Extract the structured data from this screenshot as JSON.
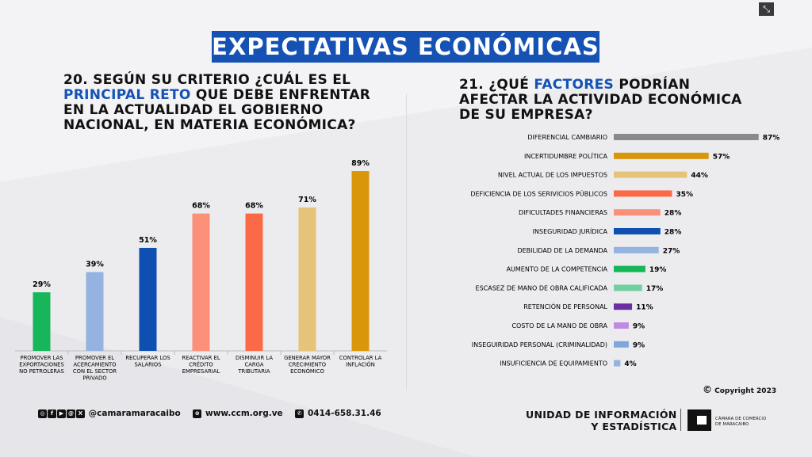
{
  "banner_title": "EXPECTATIVAS ECONÓMICAS",
  "exit_icon": "collapse-icon",
  "q20": {
    "number": "20.",
    "pre": "SEGÚN SU CRITERIO ¿CUÁL ES EL",
    "highlight": "PRINCIPAL RETO",
    "post": "QUE DEBE ENFRENTAR EN LA ACTUALIDAD EL GOBIERNO NACIONAL, EN MATERIA ECONÓMICA?"
  },
  "q21": {
    "number": "21.",
    "pre": "¿QUÉ",
    "highlight": "FACTORES",
    "post": "PODRÍAN AFECTAR LA ACTIVIDAD ECONÓMICA DE SU EMPRESA?"
  },
  "chart_data": [
    {
      "type": "bar",
      "orientation": "vertical",
      "title": "20. SEGÚN SU CRITERIO ¿CUÁL ES EL PRINCIPAL RETO QUE DEBE ENFRENTAR EN LA ACTUALIDAD EL GOBIERNO NACIONAL, EN MATERIA ECONÓMICA?",
      "categories": [
        [
          "PROMOVER LAS",
          "EXPORTACIONES",
          "NO PETROLERAS"
        ],
        [
          "PROMOVER EL",
          "ACERCAMIENTO",
          "CON EL SECTOR",
          "PRIVADO"
        ],
        [
          "RECUPERAR LOS",
          "SALARIOS"
        ],
        [
          "REACTIVAR EL",
          "CRÉDITO",
          "EMPRESARIAL"
        ],
        [
          "DISMINUIR LA",
          "CARGA",
          "TRIBUTARIA"
        ],
        [
          "GENERAR MAYOR",
          "CRECIMIENTO",
          "ECONÓMICO"
        ],
        [
          "CONTROLAR LA",
          "INFLACIÓN"
        ]
      ],
      "values": [
        29,
        39,
        51,
        68,
        68,
        71,
        89
      ],
      "labels": [
        "29%",
        "39%",
        "51%",
        "68%",
        "68%",
        "71%",
        "89%"
      ],
      "colors": [
        "#17b65a",
        "#94b3e0",
        "#0f4fb1",
        "#fc917a",
        "#fb6a47",
        "#e5c47a",
        "#d9960a"
      ],
      "ylim": [
        0,
        100
      ]
    },
    {
      "type": "bar",
      "orientation": "horizontal",
      "title": "21. ¿QUÉ FACTORES PODRÍAN AFECTAR LA ACTIVIDAD ECONÓMICA DE SU EMPRESA?",
      "categories": [
        "DIFERENCIAL CAMBIARIO",
        "INCERTIDUMBRE POLÍTICA",
        "NIVEL ACTUAL DE LOS IMPUESTOS",
        "DEFICIENCIA DE LOS SERIVICIOS PÚBLICOS",
        "DIFICULTADES FINANCIERAS",
        "INSEGURIDAD JURÍDICA",
        "DEBILIDAD DE LA DEMANDA",
        "AUMENTO DE LA COMPETENCIA",
        "ESCASEZ DE MANO DE OBRA CALIFICADA",
        "RETENCIÓN DE PERSONAL",
        "COSTO DE LA MANO DE OBRA",
        "INSEGUIRIDAD PERSONAL (CRIMINALIDAD)",
        "INSUFICIENCIA DE EQUIPAMIENTO"
      ],
      "values": [
        87,
        57,
        44,
        35,
        28,
        28,
        27,
        19,
        17,
        11,
        9,
        9,
        4
      ],
      "labels": [
        "87%",
        "57%",
        "44%",
        "35%",
        "28%",
        "28%",
        "27%",
        "19%",
        "17%",
        "11%",
        "9%",
        "9%",
        "4%"
      ],
      "colors": [
        "#8a8a8a",
        "#d9960a",
        "#e5c47a",
        "#fb6a47",
        "#fc917a",
        "#0f4fb1",
        "#94b3e0",
        "#17b65a",
        "#72d0a0",
        "#6a2fa0",
        "#c08ae0",
        "#7fa6dd",
        "#94b3e0"
      ],
      "xlim": [
        0,
        100
      ]
    }
  ],
  "footer": {
    "social_icons": [
      "instagram-icon",
      "facebook-icon",
      "youtube-icon",
      "threads-icon",
      "x-icon"
    ],
    "social_glyphs": [
      "◎",
      "f",
      "▶",
      "@",
      "X"
    ],
    "social_handle": "@camaramaracaibo",
    "web_icon_glyph": "⊕",
    "website": "www.ccm.org.ve",
    "phone_icon_glyph": "✆",
    "phone": "0414-658.31.46",
    "copyright_mark": "©",
    "copyright": "Copyright 2023",
    "unit_line1": "UNIDAD DE INFORMACIÓN",
    "unit_line2": "Y ESTADÍSTICA",
    "org_line1": "CÁMARA DE COMERCIO",
    "org_line2": "DE MARACAIBO"
  }
}
